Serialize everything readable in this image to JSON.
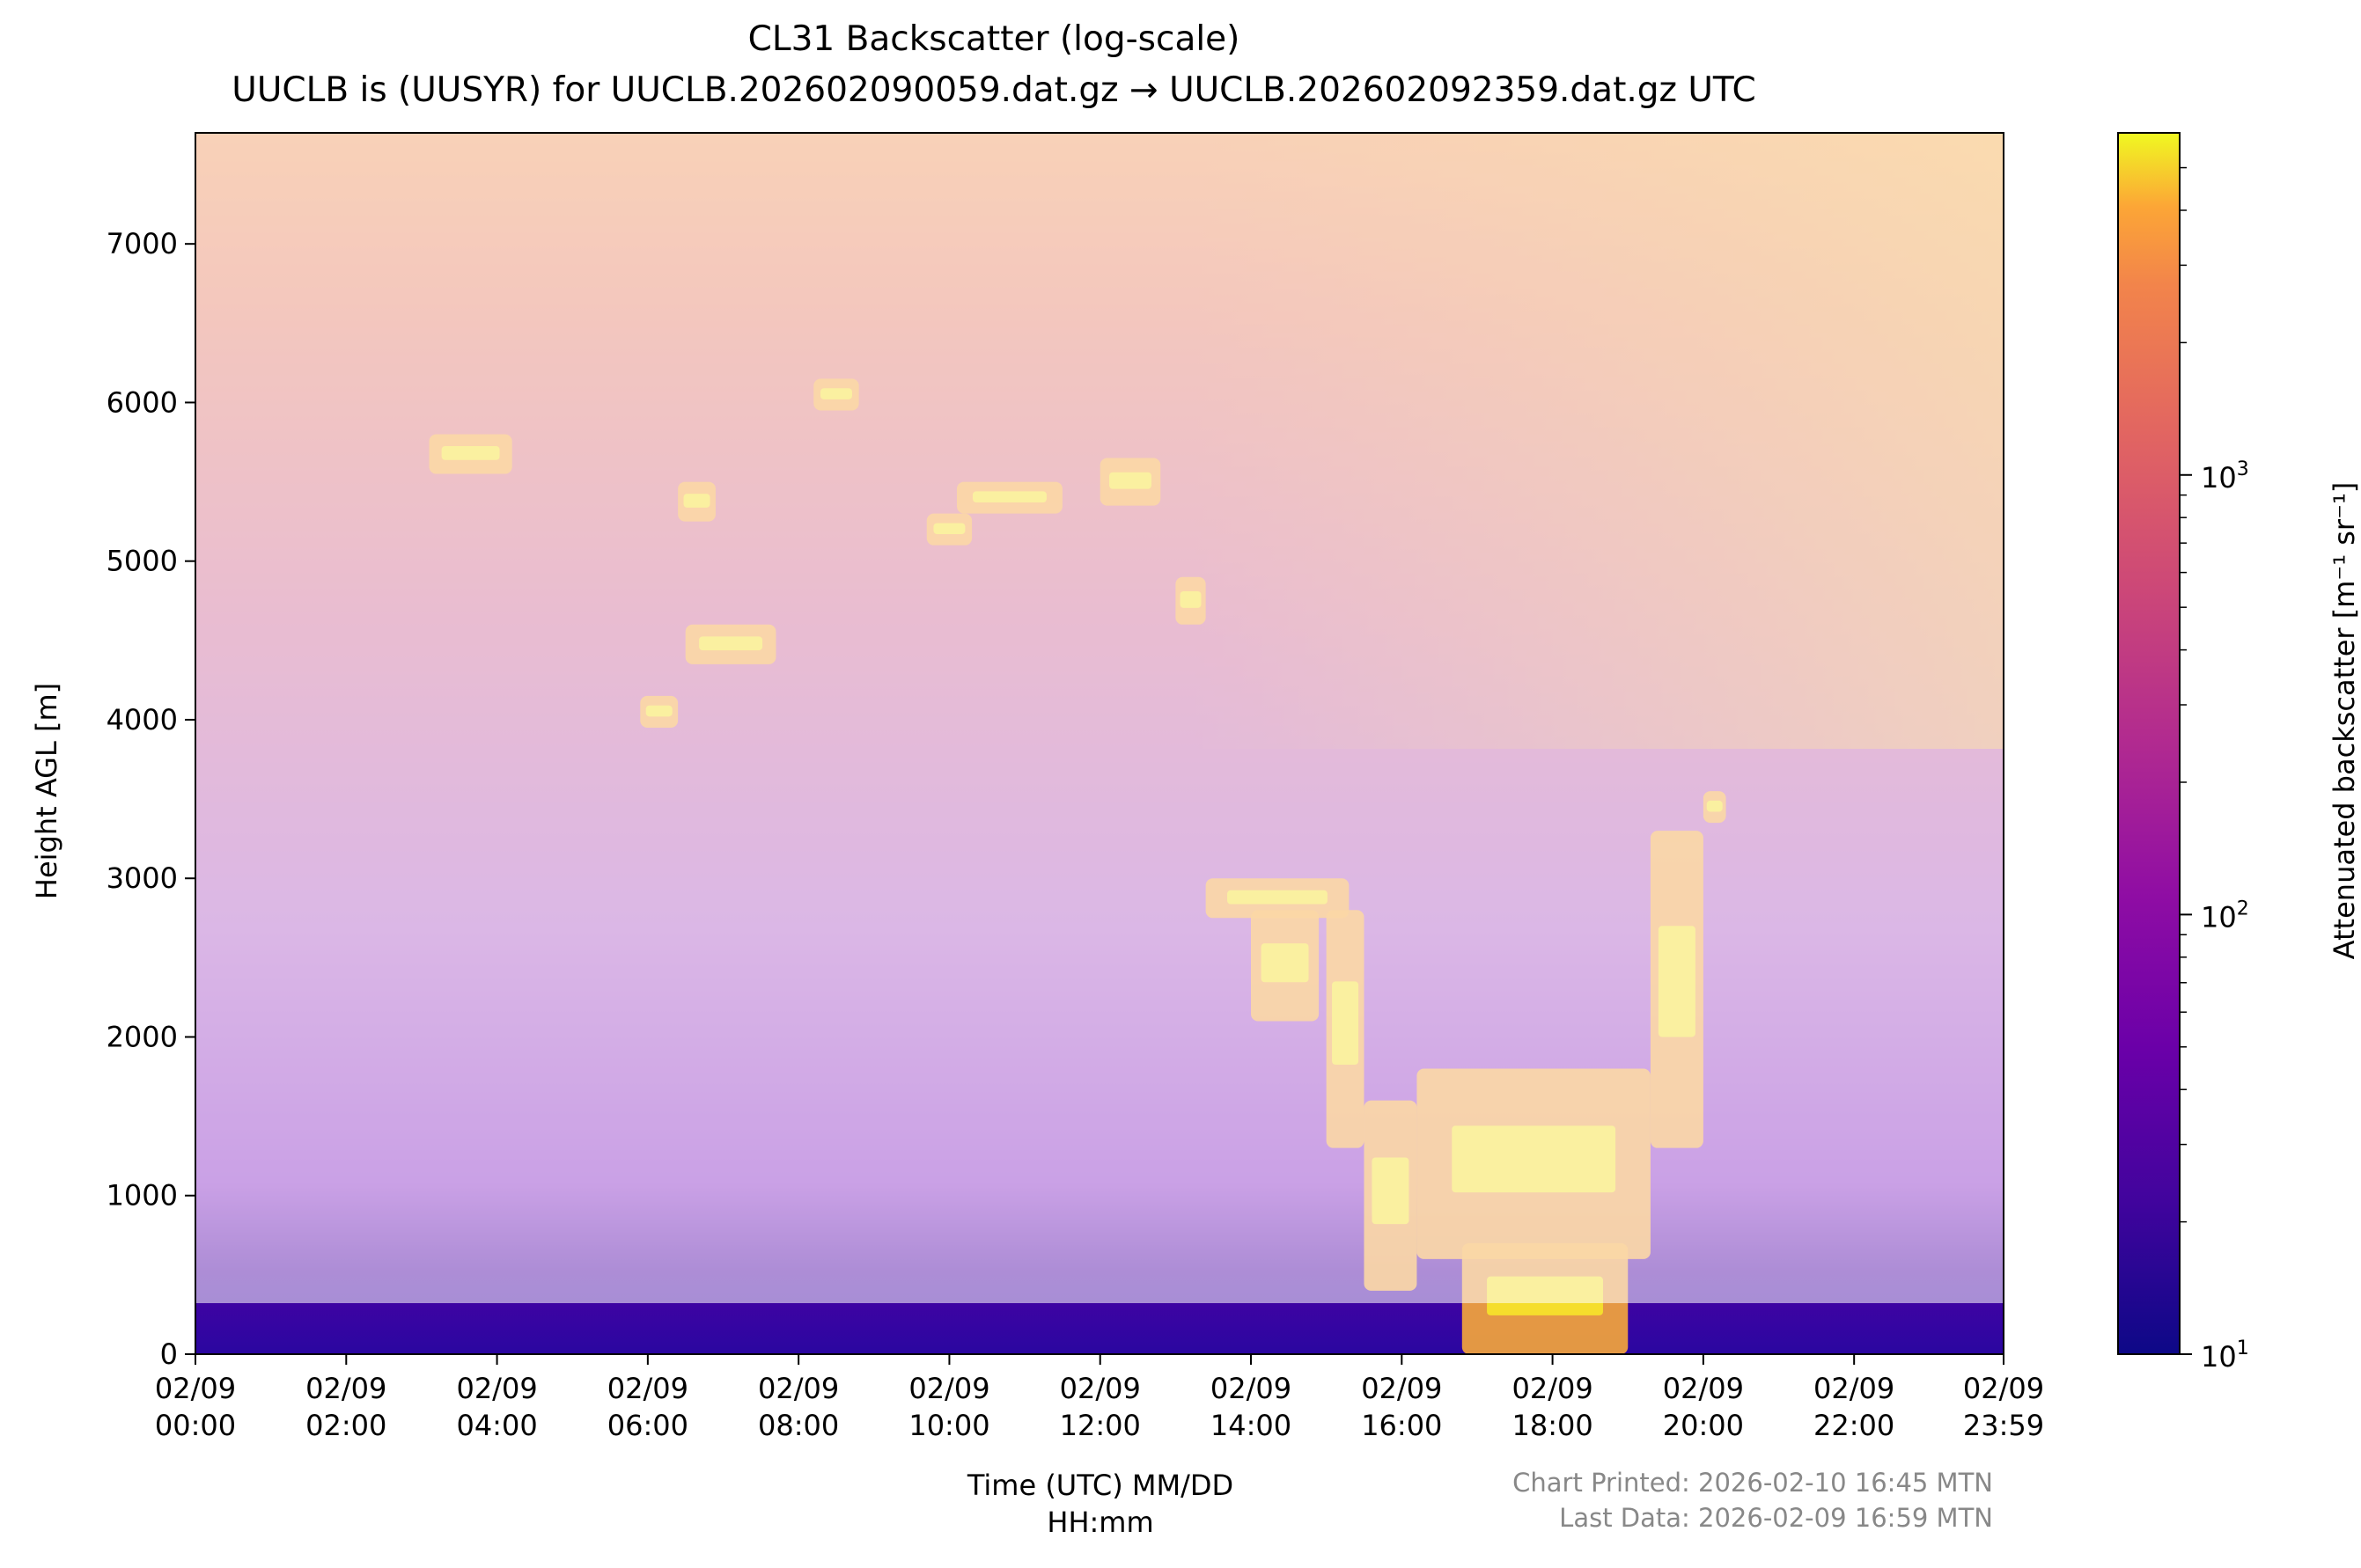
{
  "chart_data": {
    "type": "heatmap",
    "title": "CL31 Backscatter (log-scale)",
    "subtitle": "UUCLB is (UUSYR) for UUCLB.202602090059.dat.gz → UUCLB.202602092359.dat.gz UTC",
    "xlabel_line1": "Time (UTC) MM/DD",
    "xlabel_line2": "HH:mm",
    "ylabel": "Height AGL [m]",
    "colorbar_label": "Attenuated backscatter [m⁻¹ sr⁻¹]",
    "colormap": "plasma",
    "colorbar_scale": "log",
    "colorbar_range": [
      10,
      6000
    ],
    "colorbar_ticks": [
      {
        "value": 10,
        "base": "10",
        "exp": "1"
      },
      {
        "value": 100,
        "base": "10",
        "exp": "2"
      },
      {
        "value": 1000,
        "base": "10",
        "exp": "3"
      }
    ],
    "xlim_hours": [
      0,
      23.983
    ],
    "ylim": [
      0,
      7700
    ],
    "x_ticks": [
      {
        "hour": 0,
        "date": "02/09",
        "time": "00:00"
      },
      {
        "hour": 2,
        "date": "02/09",
        "time": "02:00"
      },
      {
        "hour": 4,
        "date": "02/09",
        "time": "04:00"
      },
      {
        "hour": 6,
        "date": "02/09",
        "time": "06:00"
      },
      {
        "hour": 8,
        "date": "02/09",
        "time": "08:00"
      },
      {
        "hour": 10,
        "date": "02/09",
        "time": "10:00"
      },
      {
        "hour": 12,
        "date": "02/09",
        "time": "12:00"
      },
      {
        "hour": 14,
        "date": "02/09",
        "time": "14:00"
      },
      {
        "hour": 16,
        "date": "02/09",
        "time": "16:00"
      },
      {
        "hour": 18,
        "date": "02/09",
        "time": "18:00"
      },
      {
        "hour": 20,
        "date": "02/09",
        "time": "20:00"
      },
      {
        "hour": 22,
        "date": "02/09",
        "time": "22:00"
      },
      {
        "hour": 23.983,
        "date": "02/09",
        "time": "23:59"
      }
    ],
    "y_ticks": [
      0,
      1000,
      2000,
      3000,
      4000,
      5000,
      6000,
      7000
    ],
    "cloud_layers": [
      {
        "t0": 3.1,
        "t1": 4.2,
        "h0": 5550,
        "h1": 5800
      },
      {
        "t0": 5.9,
        "t1": 6.4,
        "h0": 3950,
        "h1": 4150
      },
      {
        "t0": 6.5,
        "t1": 7.7,
        "h0": 4350,
        "h1": 4600
      },
      {
        "t0": 6.4,
        "t1": 6.9,
        "h0": 5250,
        "h1": 5500
      },
      {
        "t0": 8.2,
        "t1": 8.8,
        "h0": 5950,
        "h1": 6150
      },
      {
        "t0": 9.7,
        "t1": 10.3,
        "h0": 5100,
        "h1": 5300
      },
      {
        "t0": 10.1,
        "t1": 11.5,
        "h0": 5300,
        "h1": 5500
      },
      {
        "t0": 12.0,
        "t1": 12.8,
        "h0": 5350,
        "h1": 5650
      },
      {
        "t0": 13.0,
        "t1": 13.4,
        "h0": 4600,
        "h1": 4900
      },
      {
        "t0": 13.4,
        "t1": 15.3,
        "h0": 2750,
        "h1": 3000
      },
      {
        "t0": 14.0,
        "t1": 14.9,
        "h0": 2100,
        "h1": 2800
      },
      {
        "t0": 15.0,
        "t1": 15.5,
        "h0": 1300,
        "h1": 2800
      },
      {
        "t0": 15.5,
        "t1": 16.2,
        "h0": 400,
        "h1": 1600
      },
      {
        "t0": 16.2,
        "t1": 19.3,
        "h0": 600,
        "h1": 1800
      },
      {
        "t0": 16.8,
        "t1": 19.0,
        "h0": 0,
        "h1": 700
      },
      {
        "t0": 19.3,
        "t1": 20.0,
        "h0": 1300,
        "h1": 3300
      },
      {
        "t0": 20.0,
        "t1": 20.3,
        "h0": 3350,
        "h1": 3550
      }
    ],
    "printed": "Chart Printed: 2026-02-10 16:45 MTN",
    "last_data": "Last Data: 2026-02-09 16:59 MTN"
  }
}
